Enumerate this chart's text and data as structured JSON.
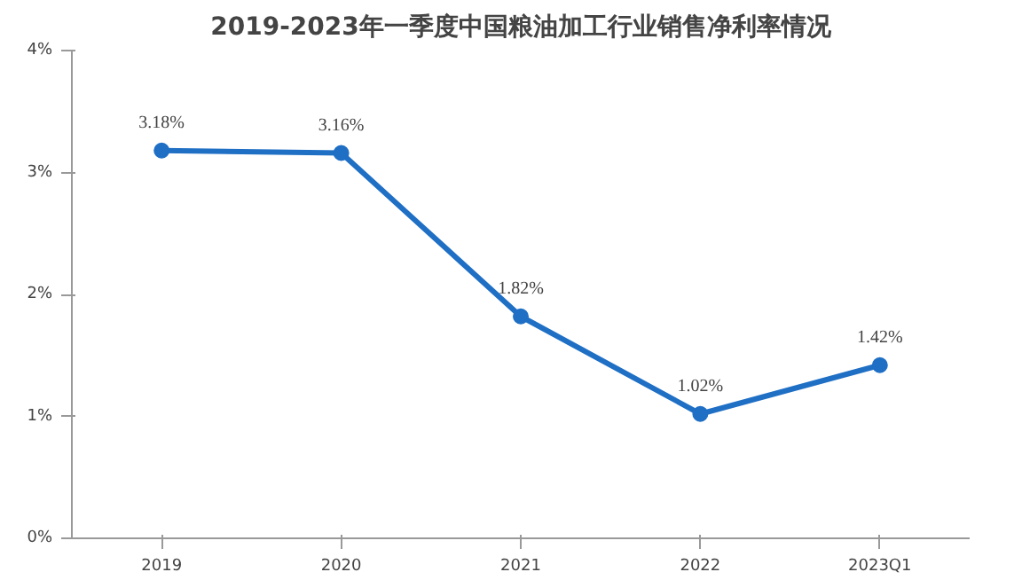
{
  "chart_data": {
    "type": "line",
    "title": "2019-2023年一季度中国粮油加工行业销售净利率情况",
    "categories": [
      "2019",
      "2020",
      "2021",
      "2022",
      "2023Q1"
    ],
    "series": [
      {
        "color": "#1f6fc5",
        "values": [
          3.18,
          3.16,
          1.82,
          1.02,
          1.42
        ],
        "value_labels": [
          "3.18%",
          "3.16%",
          "1.82%",
          "1.02%",
          "1.42%"
        ]
      }
    ],
    "ylim": [
      0,
      4
    ],
    "yticks": [
      {
        "value": 0,
        "label": "0%"
      },
      {
        "value": 1,
        "label": "1%"
      },
      {
        "value": 2,
        "label": "2%"
      },
      {
        "value": 3,
        "label": "3%"
      },
      {
        "value": 4,
        "label": "4%"
      }
    ],
    "marker": "circle",
    "line_style": "solid",
    "grid": false
  }
}
